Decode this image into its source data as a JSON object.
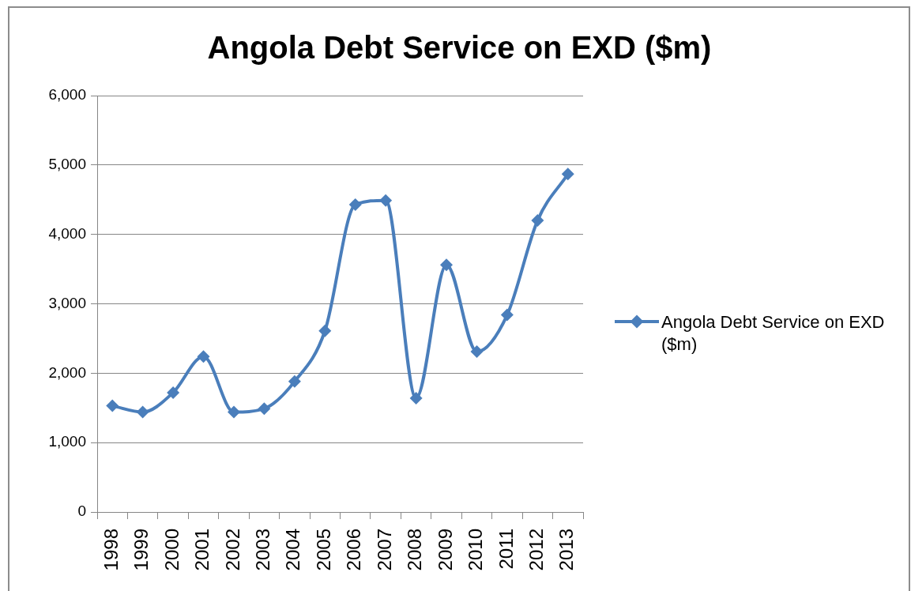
{
  "chart_data": {
    "type": "line",
    "title": "Angola Debt Service on EXD ($m)",
    "categories": [
      "1998",
      "1999",
      "2000",
      "2001",
      "2002",
      "2003",
      "2004",
      "2005",
      "2006",
      "2007",
      "2008",
      "2009",
      "2010",
      "2011",
      "2012",
      "2013"
    ],
    "series": [
      {
        "name": "Angola Debt Service on EXD ($m)",
        "color": "#4a7ebb",
        "values": [
          1530,
          1440,
          1720,
          2240,
          1440,
          1490,
          1880,
          2610,
          4430,
          4490,
          1640,
          3560,
          2310,
          2840,
          4200,
          4870
        ]
      }
    ],
    "ylim": [
      0,
      6000
    ],
    "yticks": [
      0,
      {
        "value": 1000,
        "label": "1,000"
      },
      {
        "value": 2000,
        "label": "2,000"
      },
      {
        "value": 3000,
        "label": "3,000"
      },
      {
        "value": 4000,
        "label": "4,000"
      },
      {
        "value": 5000,
        "label": "5,000"
      },
      {
        "value": 6000,
        "label": "6,000"
      }
    ],
    "grid": "y",
    "legend": "right",
    "marker": "diamond",
    "line_style": "solid"
  }
}
